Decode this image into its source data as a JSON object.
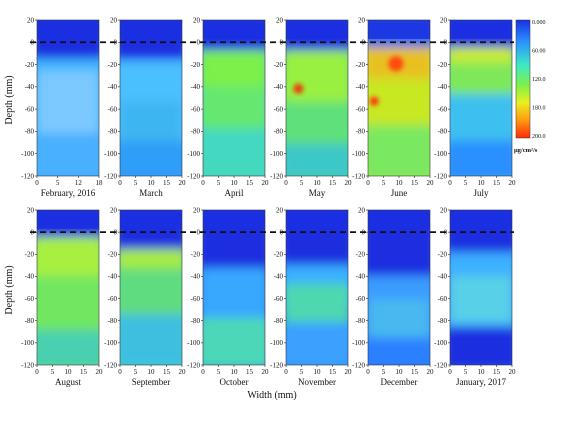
{
  "chart_data": {
    "type": "heatmap",
    "panels": [
      {
        "label": "February, 2016",
        "x_ticks": [
          "0",
          "5",
          "12",
          "18"
        ],
        "pattern": "feb"
      },
      {
        "label": "March",
        "x_ticks": [
          "0",
          "5",
          "10",
          "15",
          "20"
        ],
        "pattern": "mar"
      },
      {
        "label": "April",
        "x_ticks": [
          "0",
          "5",
          "10",
          "15",
          "20"
        ],
        "pattern": "apr"
      },
      {
        "label": "May",
        "x_ticks": [
          "0",
          "5",
          "10",
          "15",
          "20"
        ],
        "pattern": "may"
      },
      {
        "label": "June",
        "x_ticks": [
          "0",
          "5",
          "10",
          "15",
          "20"
        ],
        "pattern": "jun"
      },
      {
        "label": "July",
        "x_ticks": [
          "0",
          "5",
          "10",
          "15",
          "20"
        ],
        "pattern": "jul"
      },
      {
        "label": "August",
        "x_ticks": [
          "0",
          "5",
          "10",
          "15",
          "20"
        ],
        "pattern": "aug"
      },
      {
        "label": "September",
        "x_ticks": [
          "0",
          "5",
          "10",
          "15",
          "20"
        ],
        "pattern": "sep"
      },
      {
        "label": "October",
        "x_ticks": [
          "0",
          "5",
          "10",
          "15",
          "20"
        ],
        "pattern": "oct"
      },
      {
        "label": "November",
        "x_ticks": [
          "0",
          "5",
          "10",
          "15",
          "20"
        ],
        "pattern": "nov"
      },
      {
        "label": "December",
        "x_ticks": [
          "0",
          "5",
          "10",
          "15",
          "20"
        ],
        "pattern": "dec"
      },
      {
        "label": "January, 2017",
        "x_ticks": [
          "0",
          "5",
          "10",
          "15",
          "20"
        ],
        "pattern": "jan"
      }
    ],
    "y_ticks": [
      "20",
      "0",
      "-20",
      "-40",
      "-60",
      "-80",
      "-100",
      "-120"
    ],
    "ylim": [
      -120,
      20
    ],
    "xlim": [
      0,
      20
    ],
    "ylabel": "Depth (mm)",
    "xlabel": "Width (mm)",
    "surface_line_depth": 0,
    "colorbar": {
      "ticks": [
        "0.000",
        "60.00",
        "120.0",
        "180.0",
        "200.0"
      ],
      "unit": "μg/cm²/s",
      "colors": [
        "#1a2fe0",
        "#2a8fff",
        "#3ee8c8",
        "#7df04a",
        "#e8f020",
        "#ff9a10",
        "#ff2a0a"
      ]
    }
  }
}
